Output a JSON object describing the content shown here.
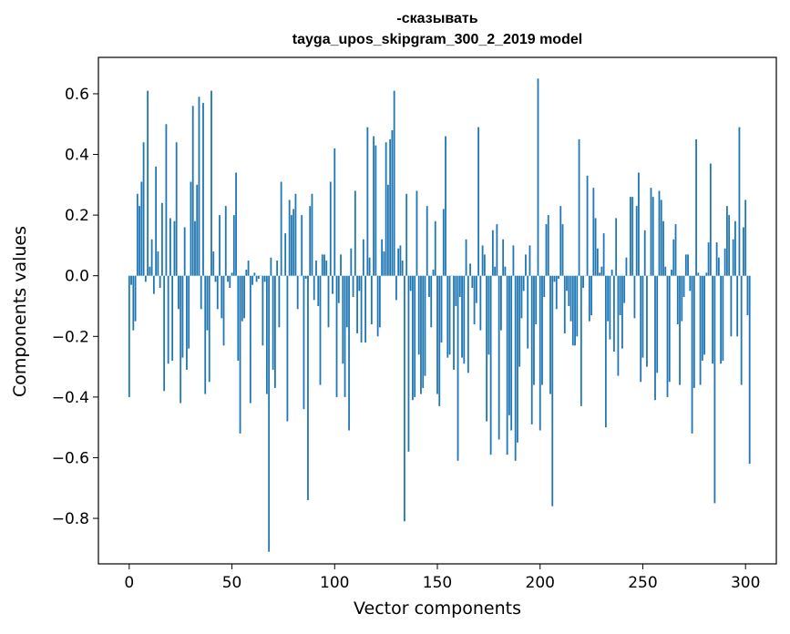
{
  "chart_data": {
    "type": "bar",
    "title_line1": "-сказывать",
    "title_line2": "tayga_upos_skipgram_300_2_2019 model",
    "xlabel": "Vector components",
    "ylabel": "Components values",
    "xlim": [
      -15,
      315
    ],
    "ylim": [
      -0.95,
      0.72
    ],
    "x_ticks": [
      0,
      50,
      100,
      150,
      200,
      250,
      300
    ],
    "y_ticks": [
      -0.8,
      -0.6,
      -0.4,
      -0.2,
      0.0,
      0.2,
      0.4,
      0.6
    ],
    "y_tick_labels": [
      "−0.8",
      "−0.6",
      "−0.4",
      "−0.2",
      "0.0",
      "0.2",
      "0.4",
      "0.6"
    ],
    "color": "#1f77b4",
    "values": [
      -0.4,
      -0.03,
      -0.18,
      -0.15,
      0.27,
      0.23,
      0.31,
      0.44,
      -0.02,
      0.61,
      0.03,
      0.12,
      -0.06,
      0.36,
      0.08,
      -0.04,
      0.24,
      -0.38,
      0.5,
      -0.29,
      0.19,
      -0.28,
      0.18,
      0.44,
      -0.11,
      -0.42,
      -0.27,
      0.16,
      -0.31,
      -0.24,
      0.31,
      0.56,
      0.18,
      0.3,
      0.59,
      -0.11,
      0.57,
      -0.39,
      -0.18,
      -0.35,
      0.61,
      0.08,
      -0.02,
      -0.11,
      0.2,
      -0.14,
      -0.23,
      0.23,
      -0.02,
      -0.04,
      0.01,
      0.2,
      0.34,
      -0.28,
      -0.52,
      -0.15,
      -0.14,
      0.02,
      0.05,
      -0.42,
      -0.03,
      0.01,
      -0.02,
      -0.01,
      0.0,
      -0.23,
      -0.02,
      -0.39,
      -0.91,
      0.06,
      -0.31,
      -0.37,
      0.05,
      -0.17,
      0.31,
      0.0,
      0.14,
      -0.48,
      0.25,
      0.2,
      0.22,
      0.27,
      -0.11,
      0.0,
      0.2,
      -0.44,
      -0.01,
      -0.74,
      0.23,
      0.27,
      -0.08,
      0.05,
      -0.1,
      -0.36,
      0.07,
      0.07,
      0.05,
      -0.17,
      0.31,
      -0.06,
      0.42,
      -0.4,
      -0.09,
      0.07,
      -0.29,
      -0.4,
      -0.17,
      -0.51,
      0.09,
      -0.07,
      0.28,
      -0.19,
      -0.05,
      -0.22,
      0.12,
      -0.22,
      0.49,
      0.06,
      -0.16,
      0.46,
      0.43,
      -0.2,
      -0.17,
      0.12,
      0.08,
      0.44,
      0.3,
      0.45,
      0.48,
      0.61,
      -0.08,
      0.09,
      0.1,
      0.05,
      -0.81,
      0.27,
      -0.58,
      -0.05,
      -0.41,
      -0.4,
      0.28,
      -0.26,
      -0.39,
      -0.37,
      -0.33,
      0.23,
      -0.07,
      -0.17,
      0.02,
      0.18,
      -0.39,
      -0.43,
      -0.22,
      0.22,
      0.46,
      -0.27,
      -0.26,
      0.0,
      -0.31,
      -0.1,
      -0.61,
      -0.07,
      -0.27,
      -0.29,
      0.12,
      -0.32,
      0.04,
      -0.04,
      -0.16,
      -0.09,
      0.49,
      -0.18,
      0.1,
      0.07,
      -0.48,
      -0.26,
      -0.59,
      0.15,
      0.03,
      0.17,
      -0.54,
      -0.18,
      0.12,
      0.03,
      -0.59,
      -0.46,
      -0.51,
      0.1,
      -0.61,
      -0.55,
      -0.3,
      -0.14,
      -0.05,
      0.07,
      -0.24,
      0.1,
      -0.49,
      -0.36,
      -0.16,
      0.65,
      -0.51,
      -0.36,
      -0.07,
      0.17,
      0.2,
      -0.39,
      -0.76,
      -0.02,
      -0.11,
      -0.01,
      0.23,
      0.17,
      -0.19,
      -0.05,
      -0.1,
      -0.15,
      -0.23,
      -0.23,
      -0.2,
      0.45,
      -0.43,
      -0.04,
      0.0,
      0.33,
      -0.15,
      -0.13,
      0.29,
      0.19,
      0.09,
      0.01,
      0.03,
      0.14,
      -0.5,
      -0.15,
      -0.21,
      0.02,
      -0.25,
      0.19,
      -0.33,
      -0.13,
      -0.24,
      -0.09,
      0.06,
      0.0,
      0.26,
      0.26,
      -0.14,
      0.23,
      0.34,
      -0.35,
      -0.27,
      0.15,
      -0.3,
      0.0,
      0.29,
      0.26,
      -0.41,
      -0.32,
      0.28,
      0.25,
      0.18,
      0.03,
      -0.4,
      -0.35,
      0.02,
      0.12,
      0.17,
      -0.16,
      -0.36,
      -0.15,
      -0.07,
      0.07,
      0.07,
      -0.05,
      -0.52,
      -0.37,
      0.45,
      0.01,
      -0.36,
      -0.28,
      -0.26,
      0.01,
      0.11,
      0.37,
      -0.29,
      -0.75,
      0.11,
      0.06,
      -0.29,
      -0.28,
      0.09,
      0.23,
      0.2,
      -0.2,
      0.12,
      0.18,
      -0.2,
      0.49,
      -0.36,
      0.16,
      0.25,
      -0.13,
      -0.62
    ]
  }
}
